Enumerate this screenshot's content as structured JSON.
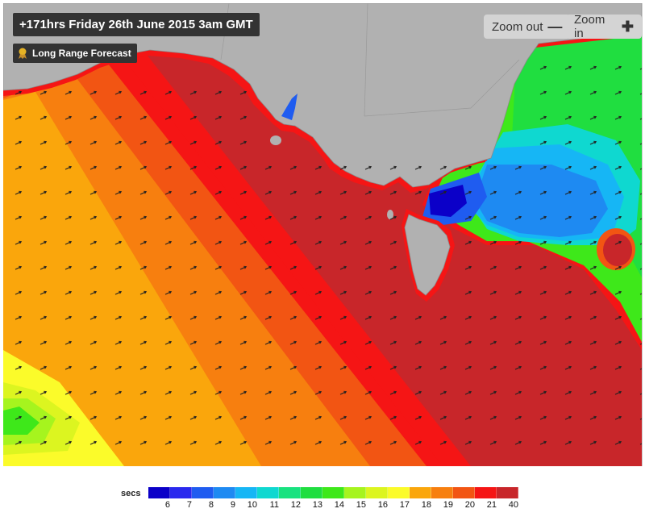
{
  "header": {
    "timestamp": "+171hrs Friday 26th June 2015 3am GMT",
    "forecast_badge": "Long Range Forecast"
  },
  "controls": {
    "zoom_out_label": "Zoom out",
    "zoom_in_label": "Zoom in"
  },
  "legend": {
    "unit_label": "secs",
    "labels": [
      "6",
      "7",
      "8",
      "9",
      "10",
      "11",
      "12",
      "13",
      "14",
      "15",
      "16",
      "17",
      "18",
      "19",
      "20",
      "21",
      "40"
    ],
    "colors": [
      "#0b00c8",
      "#2a29ee",
      "#1f5cf0",
      "#1e8af2",
      "#16b6f5",
      "#0fd8d0",
      "#18e27f",
      "#20de40",
      "#3ee81a",
      "#a6f41e",
      "#dcf520",
      "#fbfb2a",
      "#faa60c",
      "#f77f0f",
      "#f25513",
      "#f51515",
      "#c8262a"
    ]
  },
  "colors": {
    "land": "#b1b1b1",
    "coast_outline": "#888888",
    "badge_bg": "#333333",
    "zoom_bg": "#d4d4d4"
  }
}
